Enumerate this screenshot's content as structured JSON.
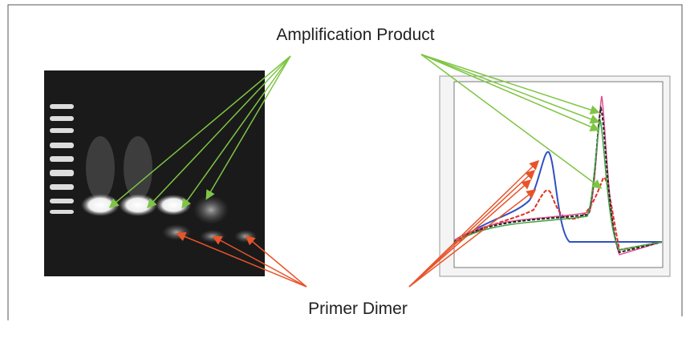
{
  "labels": {
    "top": "Amplification Product",
    "bottom": "Primer Dimer"
  }
}
